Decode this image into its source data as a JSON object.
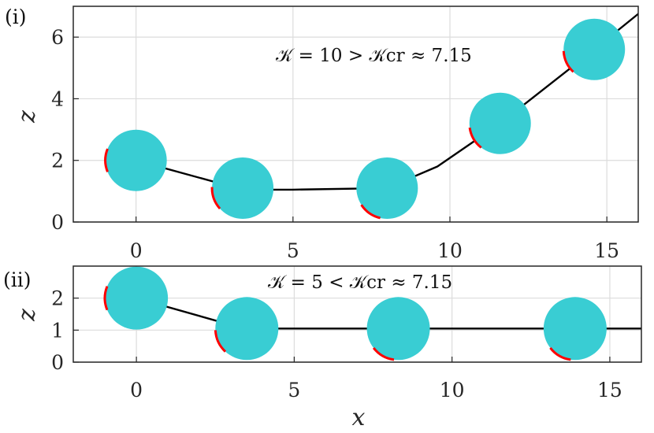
{
  "chart_data": [
    {
      "type": "line",
      "panel_label": "(i)",
      "annotation": "𝒦 = 10 > 𝒦cr ≈ 7.15",
      "xlabel": "",
      "ylabel": "z",
      "xlim": [
        -2,
        16
      ],
      "ylim": [
        0,
        7
      ],
      "xticks": [
        0,
        5,
        10,
        15
      ],
      "yticks": [
        0,
        2,
        4,
        6
      ],
      "grid": true,
      "colors": {
        "line": "#000000",
        "particle": "#39cdd3",
        "marker": "#ff0000"
      },
      "series": [
        {
          "values": [
            {
              "x": 0.0,
              "y": 2.0
            },
            {
              "x": 3.4,
              "y": 1.05
            },
            {
              "x": 5.0,
              "y": 1.05
            },
            {
              "x": 8.0,
              "y": 1.1
            },
            {
              "x": 9.6,
              "y": 1.8
            },
            {
              "x": 11.6,
              "y": 3.2
            },
            {
              "x": 14.6,
              "y": 5.6
            },
            {
              "x": 16.3,
              "y": 7.0
            }
          ]
        }
      ],
      "particles": [
        {
          "x": 0.0,
          "y": 2.0,
          "marker_angle": 180
        },
        {
          "x": 3.4,
          "y": 1.1,
          "marker_angle": 200
        },
        {
          "x": 8.0,
          "y": 1.1,
          "marker_angle": 235
        },
        {
          "x": 11.6,
          "y": 3.2,
          "marker_angle": 210
        },
        {
          "x": 14.6,
          "y": 5.6,
          "marker_angle": 205
        }
      ]
    },
    {
      "type": "line",
      "panel_label": "(ii)",
      "annotation": "𝒦 = 5 < 𝒦cr ≈ 7.15",
      "xlabel": "x",
      "ylabel": "z",
      "xlim": [
        -2,
        16
      ],
      "ylim": [
        0,
        3
      ],
      "xticks": [
        0,
        5,
        10,
        15
      ],
      "yticks": [
        0,
        1,
        2
      ],
      "grid": true,
      "colors": {
        "line": "#000000",
        "particle": "#39cdd3",
        "marker": "#ff0000"
      },
      "series": [
        {
          "values": [
            {
              "x": 0.0,
              "y": 2.0
            },
            {
              "x": 3.4,
              "y": 1.05
            },
            {
              "x": 6.5,
              "y": 1.05
            },
            {
              "x": 8.3,
              "y": 1.05
            },
            {
              "x": 13.9,
              "y": 1.05
            },
            {
              "x": 16.0,
              "y": 1.05
            }
          ]
        }
      ],
      "particles": [
        {
          "x": 0.0,
          "y": 2.0,
          "marker_angle": 180
        },
        {
          "x": 3.5,
          "y": 1.05,
          "marker_angle": 205
        },
        {
          "x": 8.3,
          "y": 1.05,
          "marker_angle": 240
        },
        {
          "x": 13.9,
          "y": 1.05,
          "marker_angle": 240
        }
      ]
    }
  ]
}
